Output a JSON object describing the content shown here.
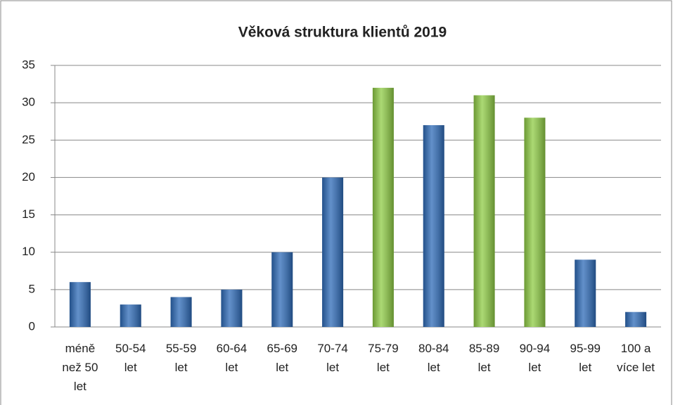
{
  "chart_data": {
    "type": "bar",
    "title": "Věková struktura klientů 2019",
    "categories": [
      "méně než 50 let",
      "50-54 let",
      "55-59 let",
      "60-64 let",
      "65-69 let",
      "70-74 let",
      "75-79 let",
      "80-84 let",
      "85-89 let",
      "90-94 let",
      "95-99 let",
      "100 a více let"
    ],
    "values": [
      6,
      3,
      4,
      5,
      10,
      20,
      32,
      27,
      31,
      28,
      9,
      2
    ],
    "colors": [
      "#2e6bb8",
      "#2e6bb8",
      "#2e6bb8",
      "#2e6bb8",
      "#2e6bb8",
      "#2e6bb8",
      "#8fcc45",
      "#2e6bb8",
      "#8fcc45",
      "#8fcc45",
      "#2e6bb8",
      "#2e6bb8"
    ],
    "ylim": [
      0,
      35
    ],
    "yticks": [
      0,
      5,
      10,
      15,
      20,
      25,
      30,
      35
    ],
    "grid": true
  }
}
